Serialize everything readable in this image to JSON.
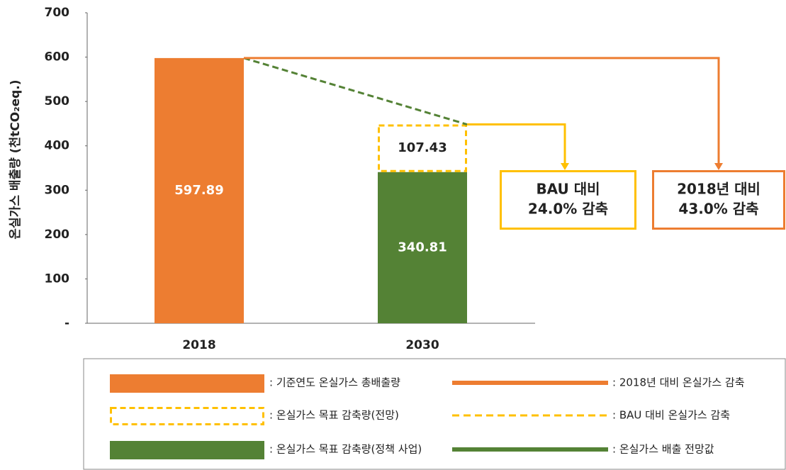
{
  "chart_data": {
    "type": "bar",
    "y_label": "온실가스 배출량 (천tCO₂eq.)",
    "categories": [
      "2018",
      "2030"
    ],
    "series": [
      {
        "name": ": 기준연도 온실가스 총배출량",
        "color": "#ED7D31",
        "style": "solid",
        "values": [
          597.89,
          null
        ]
      },
      {
        "name": ": 온실가스 목표 감축량(전망)",
        "color": "#FFC000",
        "style": "dashed",
        "values": [
          null,
          107.43
        ]
      },
      {
        "name": ": 온실가스 목표 감축량(정책 사업)",
        "color": "#548235",
        "style": "solid",
        "values": [
          null,
          340.81
        ]
      }
    ],
    "reference_lines": [
      {
        "name": ": 2018년 대비 온실가스 감축",
        "color": "#ED7D31",
        "style": "solid"
      },
      {
        "name": ": BAU 대비 온실가스 감축",
        "color": "#FFC000",
        "style": "dashed"
      },
      {
        "name": ": 온실가스 배출 전망값",
        "color": "#548235",
        "style": "solid"
      }
    ],
    "annotations": [
      {
        "lines": [
          "BAU 대비",
          "24.0% 감축"
        ],
        "color": "#FFC000"
      },
      {
        "lines": [
          "2018년 대비",
          "43.0% 감축"
        ],
        "color": "#ED7D31"
      }
    ],
    "stacked": true,
    "ylim": [
      0,
      700
    ],
    "yticks": [
      {
        "value": 0,
        "label": "-"
      },
      100,
      200,
      300,
      400,
      500,
      600,
      700
    ]
  }
}
